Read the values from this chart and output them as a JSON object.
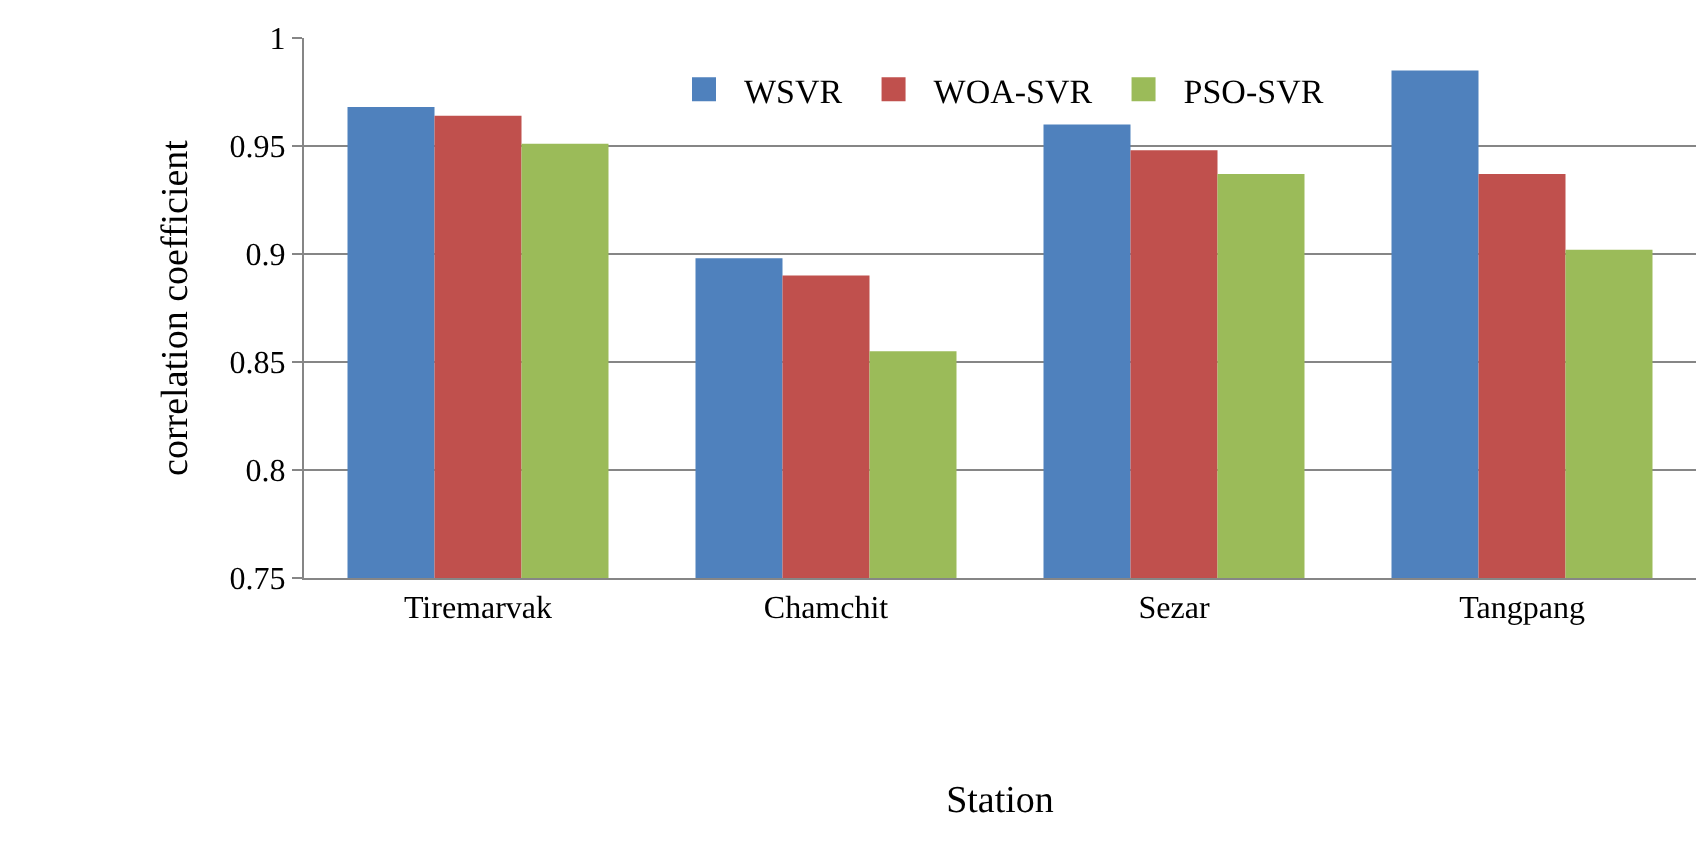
{
  "chart_data": {
    "type": "bar",
    "xlabel": "Station",
    "ylabel": "correlation coefficient",
    "categories": [
      "Tiremarvak",
      "Chamchit",
      "Sezar",
      "Tangpang"
    ],
    "series": [
      {
        "name": "WSVR",
        "color": "#4f81bd",
        "values": [
          0.968,
          0.898,
          0.96,
          0.985
        ]
      },
      {
        "name": "WOA-SVR",
        "color": "#c0504d",
        "values": [
          0.964,
          0.89,
          0.948,
          0.937
        ]
      },
      {
        "name": "PSO-SVR",
        "color": "#9bbb59",
        "values": [
          0.951,
          0.855,
          0.937,
          0.902
        ]
      }
    ],
    "ylim": [
      0.75,
      1
    ],
    "yticks": [
      0.75,
      0.8,
      0.85,
      0.9,
      0.95,
      1
    ],
    "grid": "y",
    "legend": "top"
  }
}
